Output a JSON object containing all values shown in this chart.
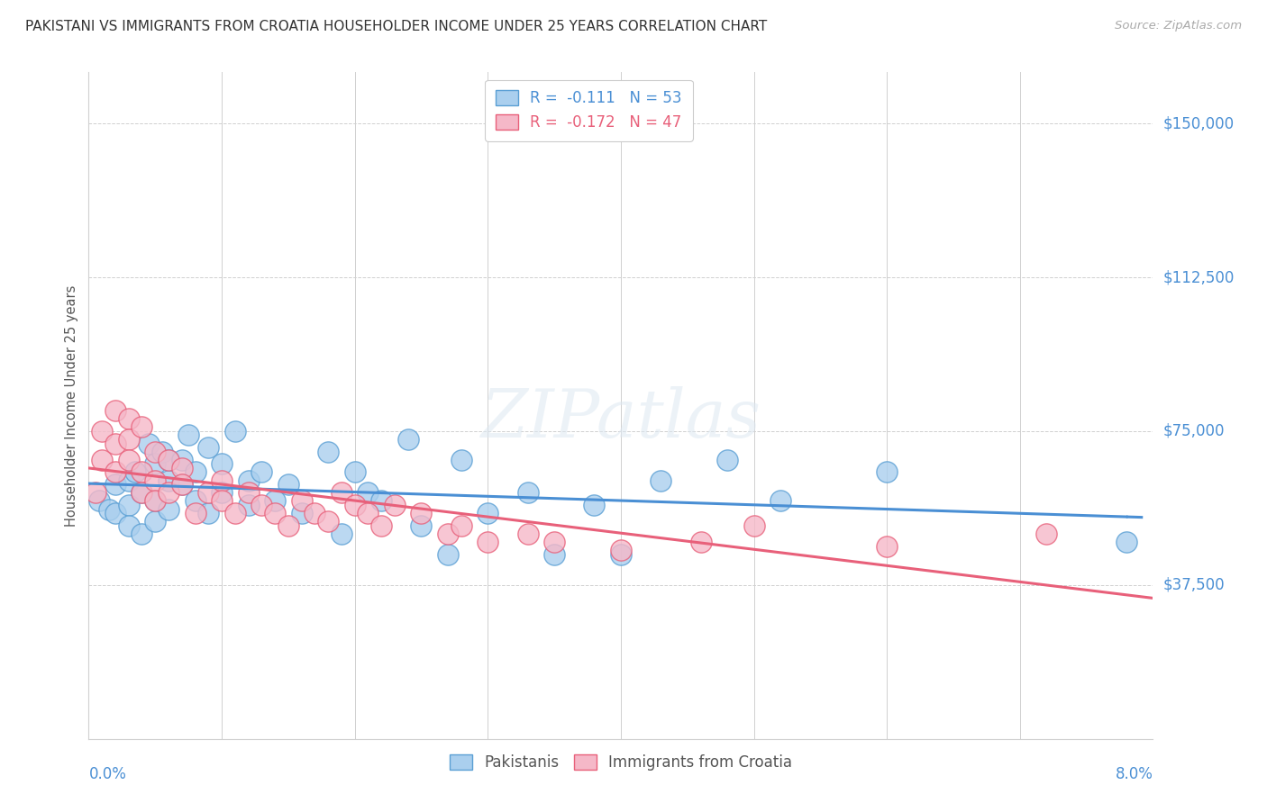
{
  "title": "PAKISTANI VS IMMIGRANTS FROM CROATIA HOUSEHOLDER INCOME UNDER 25 YEARS CORRELATION CHART",
  "source": "Source: ZipAtlas.com",
  "ylabel": "Householder Income Under 25 years",
  "ytick_labels": [
    "$37,500",
    "$75,000",
    "$112,500",
    "$150,000"
  ],
  "ytick_values": [
    37500,
    75000,
    112500,
    150000
  ],
  "ymin": 0,
  "ymax": 162500,
  "xmin": 0.0,
  "xmax": 0.08,
  "legend_blue_text": "R =  -0.111   N = 53",
  "legend_pink_text": "R =  -0.172   N = 47",
  "watermark": "ZIPatlas",
  "blue_fill": "#aacfee",
  "pink_fill": "#f5b8c8",
  "blue_edge": "#5a9fd4",
  "pink_edge": "#e8607a",
  "blue_line": "#4a8fd4",
  "pink_line": "#e8607a",
  "grid_color": "#d0d0d0",
  "pakistanis_x": [
    0.0008,
    0.0015,
    0.002,
    0.002,
    0.003,
    0.003,
    0.003,
    0.0035,
    0.004,
    0.004,
    0.0045,
    0.005,
    0.005,
    0.005,
    0.0055,
    0.006,
    0.006,
    0.006,
    0.007,
    0.007,
    0.0075,
    0.008,
    0.008,
    0.009,
    0.009,
    0.01,
    0.01,
    0.011,
    0.012,
    0.012,
    0.013,
    0.014,
    0.015,
    0.016,
    0.018,
    0.019,
    0.02,
    0.021,
    0.022,
    0.024,
    0.025,
    0.027,
    0.028,
    0.03,
    0.033,
    0.035,
    0.038,
    0.04,
    0.043,
    0.048,
    0.052,
    0.06,
    0.078
  ],
  "pakistanis_y": [
    58000,
    56000,
    55000,
    62000,
    63000,
    57000,
    52000,
    65000,
    60000,
    50000,
    72000,
    67000,
    58000,
    53000,
    70000,
    68000,
    63000,
    56000,
    68000,
    62000,
    74000,
    58000,
    65000,
    71000,
    55000,
    67000,
    60000,
    75000,
    63000,
    57000,
    65000,
    58000,
    62000,
    55000,
    70000,
    50000,
    65000,
    60000,
    58000,
    73000,
    52000,
    45000,
    68000,
    55000,
    60000,
    45000,
    57000,
    45000,
    63000,
    68000,
    58000,
    65000,
    48000
  ],
  "croatia_x": [
    0.0005,
    0.001,
    0.001,
    0.002,
    0.002,
    0.002,
    0.003,
    0.003,
    0.003,
    0.004,
    0.004,
    0.004,
    0.005,
    0.005,
    0.005,
    0.006,
    0.006,
    0.007,
    0.007,
    0.008,
    0.009,
    0.01,
    0.01,
    0.011,
    0.012,
    0.013,
    0.014,
    0.015,
    0.016,
    0.017,
    0.018,
    0.019,
    0.02,
    0.021,
    0.022,
    0.023,
    0.025,
    0.027,
    0.028,
    0.03,
    0.033,
    0.035,
    0.04,
    0.046,
    0.05,
    0.06,
    0.072
  ],
  "croatia_y": [
    60000,
    75000,
    68000,
    80000,
    72000,
    65000,
    78000,
    73000,
    68000,
    76000,
    65000,
    60000,
    70000,
    63000,
    58000,
    68000,
    60000,
    66000,
    62000,
    55000,
    60000,
    63000,
    58000,
    55000,
    60000,
    57000,
    55000,
    52000,
    58000,
    55000,
    53000,
    60000,
    57000,
    55000,
    52000,
    57000,
    55000,
    50000,
    52000,
    48000,
    50000,
    48000,
    46000,
    48000,
    52000,
    47000,
    50000
  ]
}
